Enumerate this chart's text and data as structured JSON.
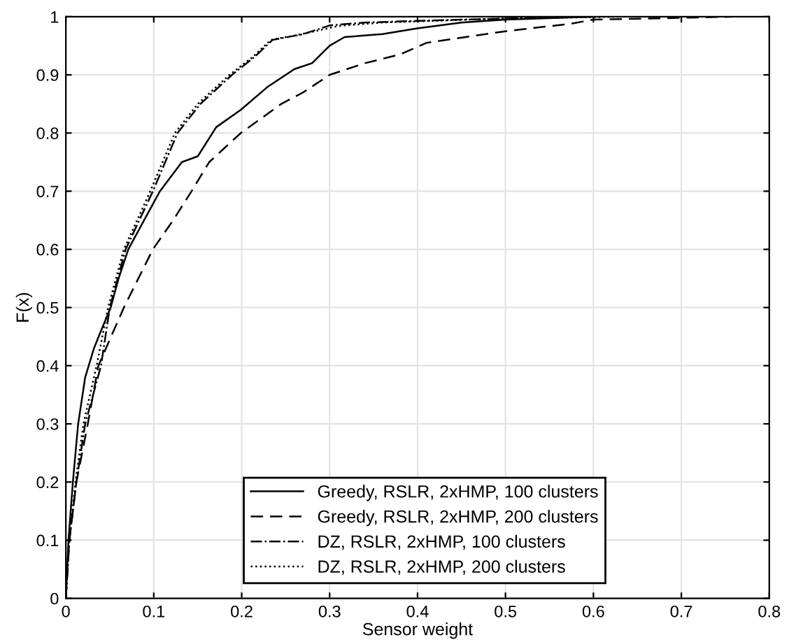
{
  "chart_data": {
    "type": "line",
    "xlabel": "Sensor weight",
    "ylabel": "F(x)",
    "xlim": [
      0,
      0.8
    ],
    "ylim": [
      0,
      1
    ],
    "xticks": [
      0,
      0.1,
      0.2,
      0.3,
      0.4,
      0.5,
      0.6,
      0.7,
      0.8
    ],
    "yticks": [
      0,
      0.1,
      0.2,
      0.3,
      0.4,
      0.5,
      0.6,
      0.7,
      0.8,
      0.9,
      1
    ],
    "grid": true,
    "legend": "bottom",
    "series": [
      {
        "name": "Greedy, RSLR, 2xHMP, 100 clusters",
        "color": "#000000",
        "line_style": "solid",
        "x": [
          0,
          0.003,
          0.008,
          0.014,
          0.022,
          0.032,
          0.04,
          0.051,
          0.06,
          0.071,
          0.089,
          0.107,
          0.132,
          0.15,
          0.171,
          0.199,
          0.23,
          0.26,
          0.28,
          0.3,
          0.317,
          0.36,
          0.4,
          0.45,
          0.5,
          0.6
        ],
        "values": [
          0,
          0.1,
          0.2,
          0.3,
          0.38,
          0.43,
          0.46,
          0.5,
          0.55,
          0.6,
          0.65,
          0.7,
          0.75,
          0.76,
          0.81,
          0.84,
          0.88,
          0.91,
          0.92,
          0.95,
          0.965,
          0.97,
          0.98,
          0.99,
          0.995,
          1
        ]
      },
      {
        "name": "Greedy, RSLR, 2xHMP, 200 clusters",
        "color": "#000000",
        "line_style": "dashed",
        "x": [
          0,
          0.004,
          0.012,
          0.025,
          0.037,
          0.066,
          0.099,
          0.122,
          0.143,
          0.163,
          0.199,
          0.245,
          0.27,
          0.3,
          0.34,
          0.38,
          0.41,
          0.5,
          0.575,
          0.6,
          0.7,
          0.76
        ],
        "values": [
          0,
          0.1,
          0.2,
          0.3,
          0.4,
          0.5,
          0.6,
          0.65,
          0.7,
          0.75,
          0.8,
          0.85,
          0.87,
          0.9,
          0.92,
          0.935,
          0.955,
          0.975,
          0.988,
          0.995,
          0.998,
          1
        ]
      },
      {
        "name": "DZ, RSLR, 2xHMP, 100 clusters",
        "color": "#000000",
        "line_style": "dashdot",
        "x": [
          0,
          0.004,
          0.012,
          0.022,
          0.04,
          0.05,
          0.068,
          0.099,
          0.127,
          0.153,
          0.189,
          0.214,
          0.235,
          0.27,
          0.3,
          0.34,
          0.45,
          0.6
        ],
        "values": [
          0,
          0.1,
          0.2,
          0.3,
          0.4,
          0.5,
          0.6,
          0.7,
          0.8,
          0.85,
          0.9,
          0.93,
          0.96,
          0.97,
          0.985,
          0.99,
          0.995,
          1
        ]
      },
      {
        "name": "DZ, RSLR, 2xHMP, 200 clusters",
        "color": "#000000",
        "line_style": "dotted",
        "x": [
          0,
          0.004,
          0.011,
          0.02,
          0.035,
          0.048,
          0.066,
          0.096,
          0.124,
          0.15,
          0.186,
          0.212,
          0.233,
          0.268,
          0.31,
          0.36,
          0.48,
          0.63
        ],
        "values": [
          0,
          0.1,
          0.2,
          0.3,
          0.4,
          0.5,
          0.6,
          0.7,
          0.8,
          0.85,
          0.9,
          0.93,
          0.96,
          0.97,
          0.984,
          0.99,
          0.996,
          1
        ]
      }
    ]
  }
}
